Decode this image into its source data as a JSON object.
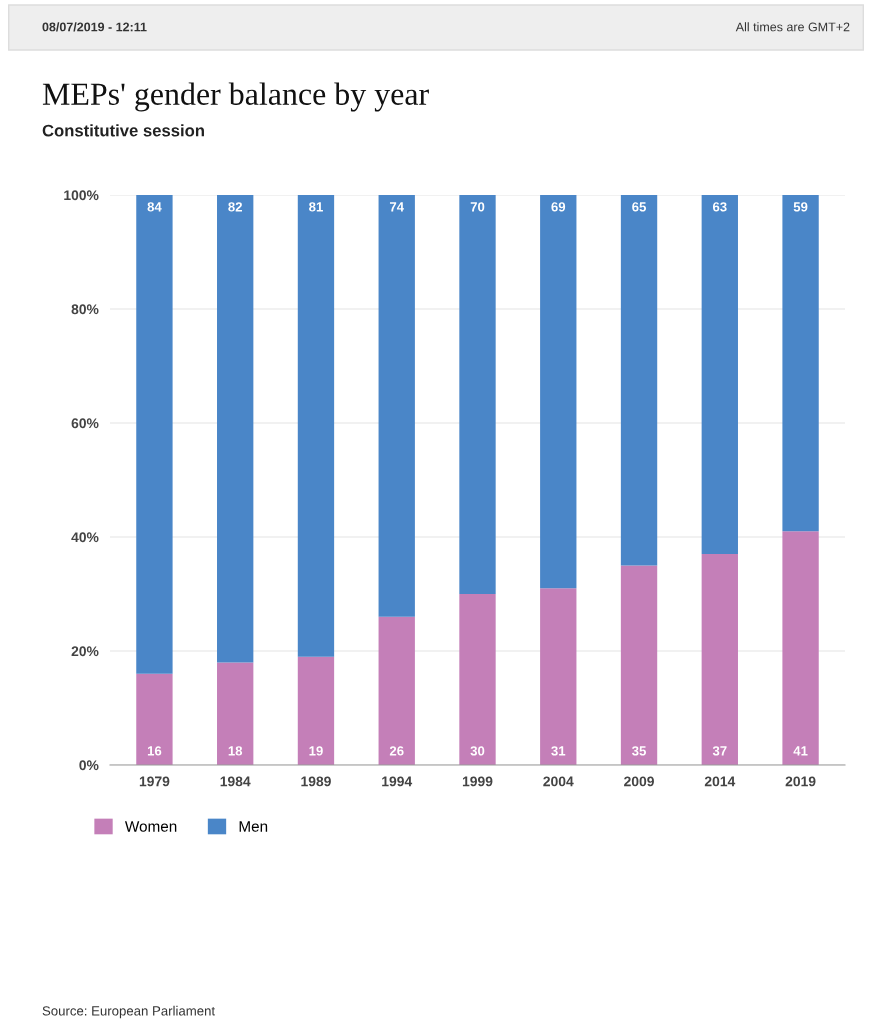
{
  "chart_data": {
    "type": "bar",
    "title": "MEPs' gender balance by year",
    "subtitle": "Constitutive session",
    "annotations": [
      "08/07/2019 - 12:11",
      "All times are GMT+2",
      "Source: European Parliament"
    ],
    "categories": [
      "1979",
      "1984",
      "1989",
      "1994",
      "1999",
      "2004",
      "2009",
      "2014",
      "2019"
    ],
    "series": [
      {
        "name": "Women",
        "color": "#c47fb8",
        "values": [
          16,
          18,
          19,
          26,
          30,
          31,
          35,
          37,
          41
        ]
      },
      {
        "name": "Men",
        "color": "#4a86c8",
        "values": [
          84,
          82,
          81,
          74,
          70,
          69,
          65,
          63,
          59
        ]
      }
    ],
    "stacked": true,
    "data_labels": true,
    "grid": "y",
    "legend": "bottom left",
    "ylim": [
      0,
      100
    ],
    "yticks": [
      {
        "value": 0,
        "label": "0%"
      },
      {
        "value": 20,
        "label": "20%"
      },
      {
        "value": 40,
        "label": "40%"
      },
      {
        "value": 60,
        "label": "60%"
      },
      {
        "value": 80,
        "label": "80%"
      },
      {
        "value": 100,
        "label": "100%"
      }
    ]
  }
}
